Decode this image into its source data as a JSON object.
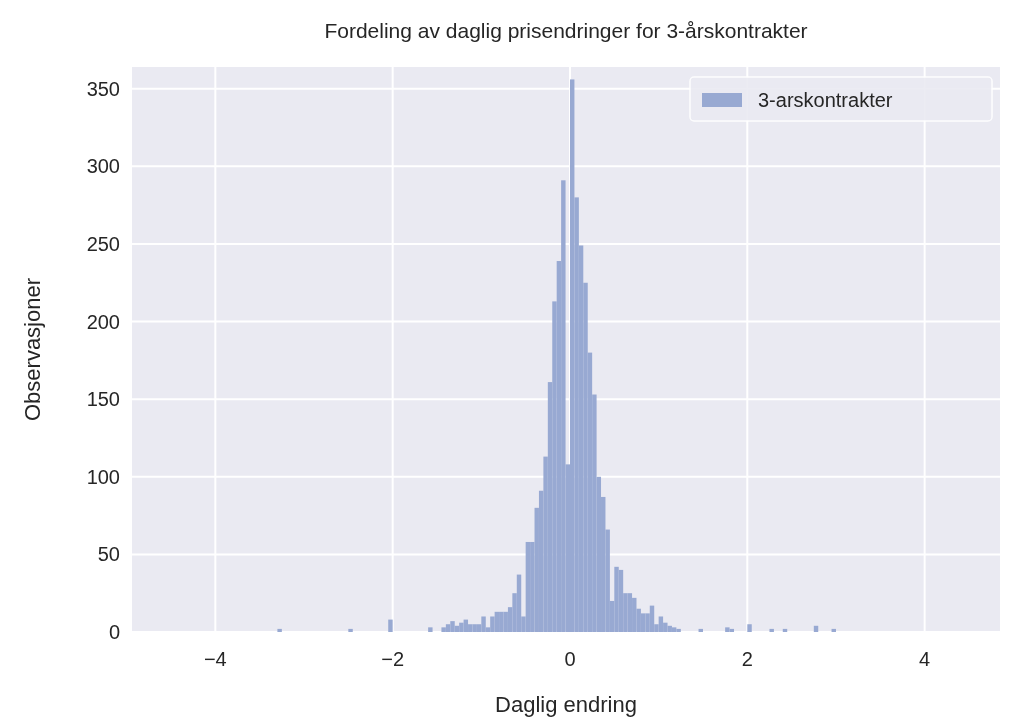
{
  "chart_data": {
    "type": "histogram",
    "title": "Fordeling av daglig prisendringer for 3-årskontrakter",
    "xlabel": "Daglig endring",
    "ylabel": "Observasjoner",
    "bins": [
      -3.3,
      -3.25,
      -2.5,
      -2.45,
      -2.05,
      -2.0,
      -1.6,
      -1.55,
      -1.45,
      -1.4,
      -1.35,
      -1.3,
      -1.25,
      -1.2,
      -1.15,
      -1.1,
      -1.05,
      -1.0,
      -0.95,
      -0.9,
      -0.85,
      -0.8,
      -0.75,
      -0.7,
      -0.65,
      -0.6,
      -0.55,
      -0.5,
      -0.45,
      -0.4,
      -0.35,
      -0.3,
      -0.25,
      -0.2,
      -0.15,
      -0.1,
      -0.05,
      0,
      0.05,
      0.1,
      0.15,
      0.2,
      0.25,
      0.3,
      0.35,
      0.4,
      0.45,
      0.5,
      0.55,
      0.6,
      0.65,
      0.7,
      0.75,
      0.8,
      0.85,
      0.9,
      0.95,
      1.0,
      1.05,
      1.1,
      1.15,
      1.2,
      1.25,
      1.45,
      1.5,
      1.75,
      1.8,
      1.85,
      2.0,
      2.05,
      2.25,
      2.3,
      2.4,
      2.45,
      2.75,
      2.8,
      2.95,
      3.0
    ],
    "series": [
      {
        "name": "3-arskontrakter",
        "color": "#98a9d2",
        "values": [
          2,
          0,
          2,
          0,
          8,
          0,
          3,
          0,
          3,
          5,
          7,
          4,
          6,
          8,
          5,
          5,
          5,
          10,
          3,
          10,
          13,
          13,
          13,
          16,
          25,
          37,
          10,
          58,
          58,
          80,
          91,
          113,
          161,
          213,
          239,
          291,
          108,
          356,
          280,
          249,
          225,
          180,
          153,
          100,
          87,
          66,
          20,
          42,
          40,
          25,
          25,
          22,
          15,
          12,
          12,
          17,
          5,
          10,
          6,
          4,
          3,
          2,
          0,
          2,
          0,
          3,
          2,
          0,
          5,
          0,
          2,
          0,
          2,
          0,
          4,
          0,
          2
        ]
      }
    ],
    "xlim": [
      -4.94,
      4.85
    ],
    "ylim": [
      0,
      364
    ],
    "xticks": [
      {
        "value": -4,
        "label": "−4"
      },
      {
        "value": -2,
        "label": "−2"
      },
      0,
      2,
      4
    ],
    "yticks": [
      0,
      50,
      100,
      150,
      200,
      250,
      300,
      350
    ],
    "grid": true,
    "legend": "top right"
  }
}
